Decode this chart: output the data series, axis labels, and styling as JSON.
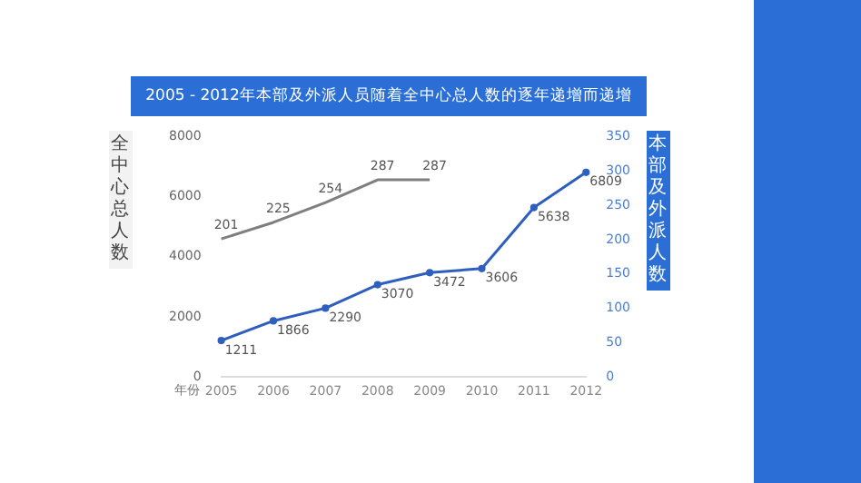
{
  "chart_data": {
    "type": "line",
    "title": "2005 - 2012年本部及外派人员随着全中心总人数的逐年递增而递增",
    "xlabel": "年份",
    "ylabel": "全中心总人数",
    "y2label": "本部及外派人数",
    "categories": [
      "2005",
      "2006",
      "2007",
      "2008",
      "2009",
      "2010",
      "2011",
      "2012"
    ],
    "series": [
      {
        "color": "#7f7f7f",
        "axis": "y2",
        "marker": "none",
        "values": [
          201,
          225,
          254,
          287,
          287,
          null,
          null,
          null
        ]
      },
      {
        "color": "#2e5fbf",
        "marker": "circle",
        "values": [
          1211,
          1866,
          2290,
          3070,
          3472,
          3606,
          5638,
          6809
        ]
      }
    ],
    "ylim": [
      0,
      8000
    ],
    "yticks": [
      0,
      2000,
      4000,
      6000,
      8000
    ],
    "y2lim": [
      0,
      350
    ],
    "y2ticks": [
      0,
      50,
      100,
      150,
      200,
      250,
      300,
      350
    ],
    "grid": false,
    "data_labels": true,
    "line_style": "solid"
  }
}
